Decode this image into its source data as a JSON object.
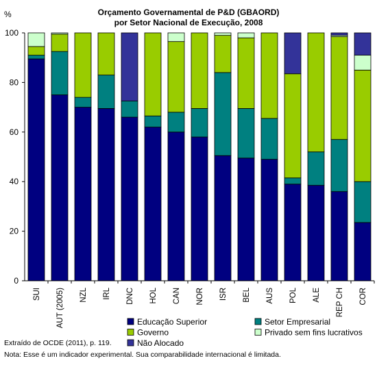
{
  "chart_data": {
    "type": "bar",
    "stacked": true,
    "title": "Orçamento Governamental de P&D (GBAORD)",
    "subtitle": "por Setor Nacional de Execução, 2008",
    "ylabel": "%",
    "ylim": [
      0,
      100
    ],
    "yticks": [
      0,
      20,
      40,
      60,
      80,
      100
    ],
    "grid": false,
    "legend_position": "bottom",
    "categories": [
      "SUI",
      "AUT (2005)",
      "NZL",
      "IRL",
      "DNC",
      "HOL",
      "CAN",
      "NOR",
      "ISR",
      "BEL",
      "AUS",
      "POL",
      "ALE",
      "REP CH",
      "COR"
    ],
    "series": [
      {
        "name": "Educação Superior",
        "color": "#000080",
        "values": [
          89.5,
          75,
          70,
          69.5,
          66,
          62,
          60,
          58,
          50.5,
          49.5,
          49,
          39,
          38.5,
          36,
          23.5
        ]
      },
      {
        "name": "Setor Empresarial",
        "color": "#008080",
        "values": [
          1.5,
          17.5,
          4,
          13.5,
          6.5,
          4.5,
          8,
          11.5,
          33.5,
          20,
          16.5,
          2.5,
          13.5,
          21,
          16.5
        ]
      },
      {
        "name": "Governo",
        "color": "#99cc00",
        "values": [
          3.5,
          7,
          26,
          17,
          0,
          33.5,
          28.5,
          30.5,
          15,
          28.5,
          34.5,
          42,
          48,
          41.5,
          45
        ]
      },
      {
        "name": "Privado sem fins lucrativos",
        "color": "#ccffcc",
        "values": [
          5.5,
          0.5,
          0,
          0,
          0,
          0,
          3.5,
          0,
          1,
          2,
          0,
          0,
          0,
          0.5,
          6
        ]
      },
      {
        "name": "Não Alocado",
        "color": "#333399",
        "values": [
          0,
          0,
          0,
          0,
          27.5,
          0,
          0,
          0,
          0,
          0,
          0,
          16.5,
          0,
          1,
          9
        ]
      }
    ]
  },
  "notes": {
    "source": "Extraído de OCDE (2011), p. 119.",
    "note": "Nota: Esse é um indicador experimental. Sua comparabilidade internacional é limitada."
  }
}
